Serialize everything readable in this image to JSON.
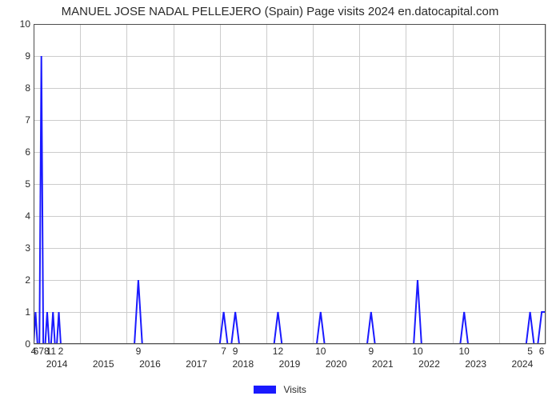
{
  "chart": {
    "type": "line",
    "title": "MANUEL JOSE NADAL PELLEJERO (Spain) Page visits 2024 en.datocapital.com",
    "title_fontsize": 15,
    "title_color": "#2a2a2a",
    "background_color": "#ffffff",
    "line_color": "#1a1aff",
    "line_width": 2,
    "grid_color": "#cccccc",
    "border_color": "#4d4d4d",
    "y": {
      "min": 0,
      "max": 10,
      "ticks": [
        0,
        1,
        2,
        3,
        4,
        5,
        6,
        7,
        8,
        9,
        10
      ]
    },
    "x_range": {
      "min": 0,
      "max": 132
    },
    "x_grid": [
      0,
      12,
      24,
      36,
      48,
      60,
      72,
      84,
      96,
      108,
      120,
      132
    ],
    "x_major_labels": [
      {
        "x": 6,
        "label": "2014"
      },
      {
        "x": 18,
        "label": "2015"
      },
      {
        "x": 30,
        "label": "2016"
      },
      {
        "x": 42,
        "label": "2017"
      },
      {
        "x": 54,
        "label": "2018"
      },
      {
        "x": 66,
        "label": "2019"
      },
      {
        "x": 78,
        "label": "2020"
      },
      {
        "x": 90,
        "label": "2021"
      },
      {
        "x": 102,
        "label": "2022"
      },
      {
        "x": 114,
        "label": "2023"
      },
      {
        "x": 126,
        "label": "2024"
      }
    ],
    "x_minor_labels": [
      {
        "x": 0,
        "label": "4"
      },
      {
        "x": 2,
        "label": "678"
      },
      {
        "x": 4.5,
        "label": "11"
      },
      {
        "x": 7,
        "label": "2"
      },
      {
        "x": 27,
        "label": "9"
      },
      {
        "x": 49,
        "label": "7"
      },
      {
        "x": 52,
        "label": "9"
      },
      {
        "x": 63,
        "label": "12"
      },
      {
        "x": 74,
        "label": "10"
      },
      {
        "x": 87,
        "label": "9"
      },
      {
        "x": 99,
        "label": "10"
      },
      {
        "x": 111,
        "label": "10"
      },
      {
        "x": 128,
        "label": "5"
      },
      {
        "x": 131,
        "label": "6"
      }
    ],
    "series": {
      "name": "Visits",
      "points": [
        [
          0,
          0
        ],
        [
          0.5,
          1
        ],
        [
          1,
          0
        ],
        [
          1.5,
          0
        ],
        [
          2,
          9
        ],
        [
          2.5,
          0
        ],
        [
          3,
          0
        ],
        [
          3.5,
          1
        ],
        [
          4,
          0
        ],
        [
          4.5,
          0
        ],
        [
          5,
          1
        ],
        [
          5.5,
          0
        ],
        [
          6,
          0
        ],
        [
          6.5,
          1
        ],
        [
          7,
          0
        ],
        [
          7.5,
          0
        ],
        [
          26,
          0
        ],
        [
          27,
          2
        ],
        [
          28,
          0
        ],
        [
          48,
          0
        ],
        [
          49,
          1
        ],
        [
          50,
          0
        ],
        [
          51,
          0
        ],
        [
          52,
          1
        ],
        [
          53,
          0
        ],
        [
          62,
          0
        ],
        [
          63,
          1
        ],
        [
          64,
          0
        ],
        [
          73,
          0
        ],
        [
          74,
          1
        ],
        [
          75,
          0
        ],
        [
          86,
          0
        ],
        [
          87,
          1
        ],
        [
          88,
          0
        ],
        [
          98,
          0
        ],
        [
          99,
          2
        ],
        [
          100,
          0
        ],
        [
          110,
          0
        ],
        [
          111,
          1
        ],
        [
          112,
          0
        ],
        [
          127,
          0
        ],
        [
          128,
          1
        ],
        [
          129,
          0
        ],
        [
          130,
          0
        ],
        [
          131,
          1
        ],
        [
          132,
          1
        ]
      ]
    },
    "legend": {
      "label": "Visits",
      "swatch_color": "#1a1aff"
    }
  }
}
